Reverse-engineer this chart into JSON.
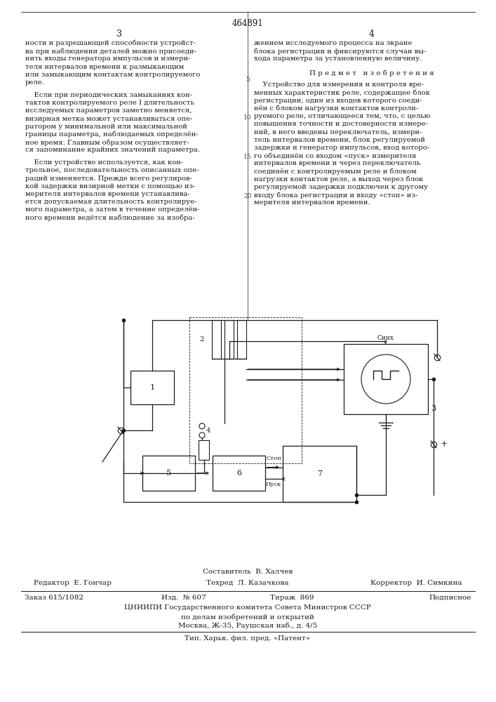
{
  "patent_number": "464891",
  "page_left": "3",
  "page_right": "4",
  "bg_color": "#ffffff",
  "text_color": "#1a1a1a",
  "font_size_body": 7.2,
  "font_size_small": 6.0,
  "line_numbers_5": "5",
  "line_numbers_10": "10",
  "line_numbers_15": "15",
  "line_numbers_20": "20",
  "left_col_lines": [
    "ности и разрешающей способности устройст-",
    "ва при наблюдении деталей можно присоеди-",
    "нить входы генератора импульсов и измери-",
    "теля интервалов времени к размыкающим",
    "или замыкающим контактам контролируемого",
    "реле.",
    "",
    "    Если при периодических замыканиях кон-",
    "тактов контролируемого реле I длительность",
    "исследуемых параметров заметно меняется,",
    "визирная метка может устанавливаться опе-",
    "ратором у минимальной или максимальной",
    "границы параметра, наблюдаемых определён-",
    "ное время. Главным образом осуществляет-",
    "ся запоминание крайних значений параметра.",
    "",
    "    Если устройство используется, как кон-",
    "трольное, последовательность описанных опе-",
    "раций изменяется. Прежде всего регулиров-",
    "кой задержки визирной метки с помощью из-",
    "мерителя интервалов времени устанавлива-",
    "ется допускаемая длительность контролируе-",
    "мого параметра, а затем в течение определён-",
    "ного времени ведётся наблюдение за изобра-"
  ],
  "right_col_lines": [
    "жением исследуемого процесса на экране",
    "блока регистрации и фиксируются случаи вы-",
    "хода параметра за установленную величину."
  ],
  "subject_header": "П р е д м е т   и з о б р е т е н и я",
  "right_col_lines2": [
    "    Устройство для измерения и контроля вре-",
    "менных характеристик реле, содержащее блок",
    "регистрации, один из входов которого соеди-",
    "нён с блоком нагрузки контактов контроли-",
    "руемого реле, отличающееся тем, что, с целью",
    "повышения точности и достоверности измере-",
    "ний, в него введены переключатель, измери-",
    "тель интервалов времени, блок регулируемой",
    "задержки и генератор импульсов, вход которо-",
    "го объединён со входом «пуск» измерителя",
    "интервалов времени и через переключатель",
    "соединён с контролируемым реле и блоком",
    "нагрузки контактов реле, а выход через блок",
    "регулируемой задержки подключен к другому",
    "входу блока регистрации и входу «стоп» из-",
    "мерителя интервалов времени."
  ],
  "footer_compiler": "Составитель  В. Халчев",
  "footer_editor_label": "Редактор",
  "footer_editor": "Е. Гончар",
  "footer_techred_label": "Техред",
  "footer_techred": "Л. Казачкова",
  "footer_corrector_label": "Корректор",
  "footer_corrector": "И. Симкина",
  "footer_order": "Заказ 615/1082",
  "footer_issue": "Изд.  № 607",
  "footer_circulation": "Тираж  869",
  "footer_subscription": "Подписное",
  "footer_cniip": "ЦНИИПИ Государственного комитета Совета Министров СССР",
  "footer_affairs": "по делам изобретений и открытий",
  "footer_address": "Москва, Ж-35, Раушская наб., д. 4/5",
  "footer_print": "Тип. Харьк. фил. пред. «Патент»"
}
